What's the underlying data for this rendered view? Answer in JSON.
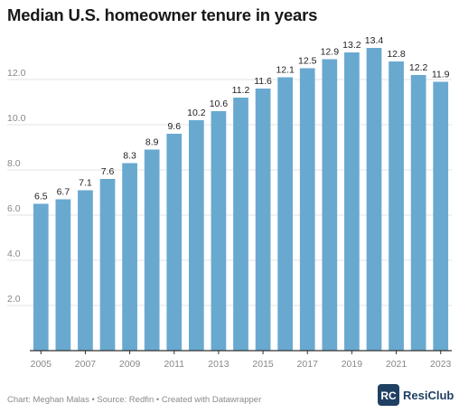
{
  "title": "Median U.S. homeowner tenure in years",
  "footer": "Chart: Meghan Malas • Source: Redfin • Created with Datawrapper",
  "brand": {
    "name": "ResiClub",
    "logo_letters": "RC",
    "color": "#1f3f63"
  },
  "colors": {
    "bar": "#69a9d0",
    "grid": "#e3e3e3",
    "axis": "#333333",
    "tick_text": "#888888",
    "label_text": "#222222"
  },
  "chart_data": {
    "type": "bar",
    "title": "Median U.S. homeowner tenure in years",
    "xlabel": "",
    "ylabel": "",
    "categories": [
      "2005",
      "2006",
      "2007",
      "2008",
      "2009",
      "2010",
      "2011",
      "2012",
      "2013",
      "2014",
      "2015",
      "2016",
      "2017",
      "2018",
      "2019",
      "2020",
      "2021",
      "2022",
      "2023"
    ],
    "values": [
      6.5,
      6.7,
      7.1,
      7.6,
      8.3,
      8.9,
      9.6,
      10.2,
      10.6,
      11.2,
      11.6,
      12.1,
      12.5,
      12.9,
      13.2,
      13.4,
      12.8,
      12.2,
      11.9
    ],
    "data_labels": [
      "6.5",
      "6.7",
      "7.1",
      "7.6",
      "8.3",
      "8.9",
      "9.6",
      "10.2",
      "10.6",
      "11.2",
      "11.6",
      "12.1",
      "12.5",
      "12.9",
      "13.2",
      "13.4",
      "12.8",
      "12.2",
      "11.9"
    ],
    "x_tick_labels": [
      "2005",
      "2007",
      "2009",
      "2011",
      "2013",
      "2015",
      "2017",
      "2019",
      "2021",
      "2023"
    ],
    "y_ticks": [
      2,
      4,
      6,
      8,
      10,
      12
    ],
    "y_tick_labels": [
      "2.0",
      "4.0",
      "6.0",
      "8.0",
      "10.0",
      "12.0"
    ],
    "ylim": [
      0,
      14
    ],
    "grid": true,
    "legend": "none"
  }
}
